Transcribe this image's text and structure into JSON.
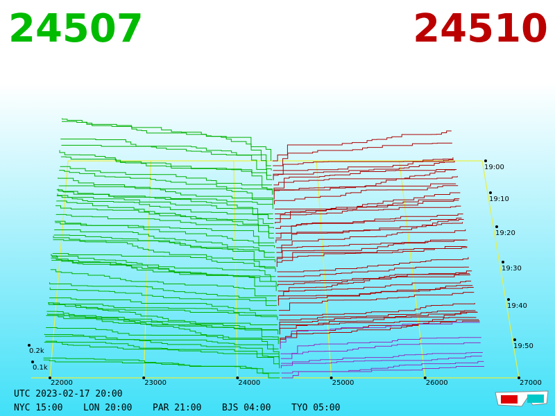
{
  "header": {
    "bid": "24507",
    "ask": "24510"
  },
  "price_labels": [
    "22000",
    "23000",
    "24000",
    "25000",
    "26000",
    "27000"
  ],
  "depth_labels": [
    "0.2k",
    "0.1k"
  ],
  "time_labels": [
    "19:00",
    "19:10",
    "19:20",
    "19:30",
    "19:40",
    "19:50"
  ],
  "footer": {
    "utc": "UTC 2023-02-17 20:00",
    "cities": [
      "NYC 15:00",
      "LON 20:00",
      "PAR 21:00",
      "BJS 04:00",
      "TYO 05:00"
    ]
  }
}
